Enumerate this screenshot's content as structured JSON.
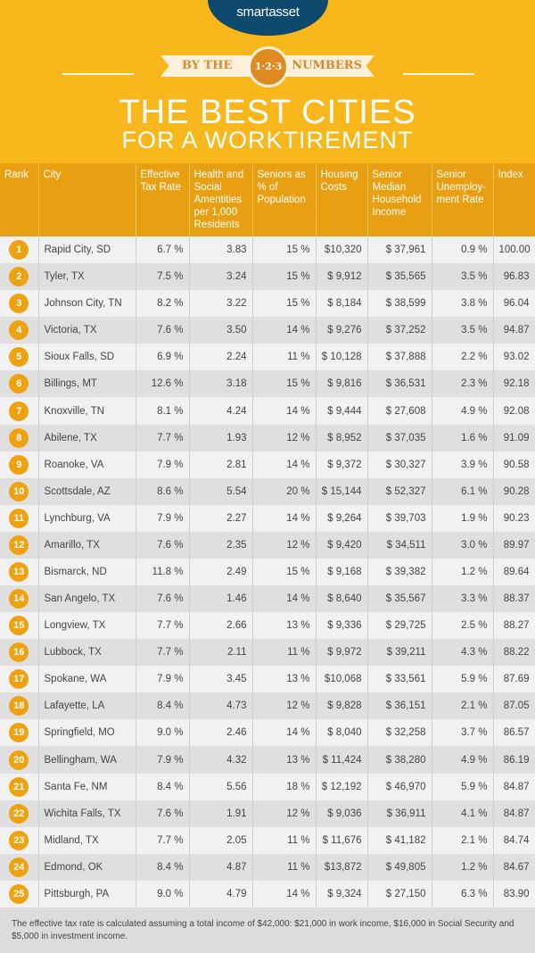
{
  "brand": "smartasset",
  "banner": {
    "left": "BY THE",
    "coin": "1·2·3",
    "right": "NUMBERS"
  },
  "title_line1": "THE BEST CITIES",
  "title_line2": "FOR A WORKTIREMENT",
  "accent_colors": {
    "background": "#f8b81c",
    "header": "#e8a012",
    "badge": "#eea20f",
    "logo": "#0d4a6d"
  },
  "columns": [
    "Rank",
    "City",
    "Effective Tax Rate",
    "Health and Social Amentities per 1,000 Residents",
    "Seniors as % of Population",
    "Housing Costs",
    "Senior Median Household Income",
    "Senior Unemploy-ment Rate",
    "Index"
  ],
  "rows": [
    [
      "1",
      "Rapid City, SD",
      "6.7 %",
      "3.83",
      "15 %",
      "$10,320",
      "$ 37,961",
      "0.9 %",
      "100.00"
    ],
    [
      "2",
      "Tyler, TX",
      "7.5 %",
      "3.24",
      "15 %",
      "$ 9,912",
      "$ 35,565",
      "3.5 %",
      "96.83"
    ],
    [
      "3",
      "Johnson City, TN",
      "8.2 %",
      "3.22",
      "15 %",
      "$ 8,184",
      "$ 38,599",
      "3.8 %",
      "96.04"
    ],
    [
      "4",
      "Victoria, TX",
      "7.6 %",
      "3.50",
      "14 %",
      "$ 9,276",
      "$ 37,252",
      "3.5 %",
      "94.87"
    ],
    [
      "5",
      "Sioux Falls, SD",
      "6.9 %",
      "2.24",
      "11 %",
      "$ 10,128",
      "$ 37,888",
      "2.2 %",
      "93.02"
    ],
    [
      "6",
      "Billings, MT",
      "12.6 %",
      "3.18",
      "15 %",
      "$ 9,816",
      "$ 36,531",
      "2.3 %",
      "92.18"
    ],
    [
      "7",
      "Knoxville, TN",
      "8.1 %",
      "4.24",
      "14 %",
      "$ 9,444",
      "$ 27,608",
      "4.9 %",
      "92.08"
    ],
    [
      "8",
      "Abilene, TX",
      "7.7 %",
      "1.93",
      "12 %",
      "$ 8,952",
      "$ 37,035",
      "1.6 %",
      "91.09"
    ],
    [
      "9",
      "Roanoke, VA",
      "7.9 %",
      "2.81",
      "14 %",
      "$ 9,372",
      "$ 30,327",
      "3.9 %",
      "90.58"
    ],
    [
      "10",
      "Scottsdale, AZ",
      "8.6 %",
      "5.54",
      "20 %",
      "$ 15,144",
      "$ 52,327",
      "6.1 %",
      "90.28"
    ],
    [
      "11",
      "Lynchburg, VA",
      "7.9 %",
      "2.27",
      "14 %",
      "$ 9,264",
      "$ 39,703",
      "1.9 %",
      "90.23"
    ],
    [
      "12",
      "Amarillo, TX",
      "7.6 %",
      "2.35",
      "12 %",
      "$ 9,420",
      "$ 34,511",
      "3.0 %",
      "89.97"
    ],
    [
      "13",
      "Bismarck, ND",
      "11.8 %",
      "2.49",
      "15 %",
      "$ 9,168",
      "$ 39,382",
      "1.2 %",
      "89.64"
    ],
    [
      "14",
      "San Angelo, TX",
      "7.6 %",
      "1.46",
      "14 %",
      "$ 8,640",
      "$ 35,567",
      "3.3 %",
      "88.37"
    ],
    [
      "15",
      "Longview, TX",
      "7.7 %",
      "2.66",
      "13 %",
      "$ 9,336",
      "$ 29,725",
      "2.5 %",
      "88.27"
    ],
    [
      "16",
      "Lubbock, TX",
      "7.7 %",
      "2.11",
      "11 %",
      "$ 9,972",
      "$ 39,211",
      "4.3 %",
      "88.22"
    ],
    [
      "17",
      "Spokane, WA",
      "7.9 %",
      "3.45",
      "13 %",
      "$10,068",
      "$ 33,561",
      "5.9 %",
      "87.69"
    ],
    [
      "18",
      "Lafayette, LA",
      "8.4 %",
      "4.73",
      "12 %",
      "$ 9,828",
      "$ 36,151",
      "2.1 %",
      "87.05"
    ],
    [
      "19",
      "Springfield, MO",
      "9.0 %",
      "2.46",
      "14 %",
      "$ 8,040",
      "$ 32,258",
      "3.7 %",
      "86.57"
    ],
    [
      "20",
      "Bellingham, WA",
      "7.9 %",
      "4.32",
      "13 %",
      "$ 11,424",
      "$ 38,280",
      "4.9 %",
      "86.19"
    ],
    [
      "21",
      "Santa Fe, NM",
      "8.4 %",
      "5.56",
      "18 %",
      "$ 12,192",
      "$ 46,970",
      "5.9 %",
      "84.87"
    ],
    [
      "22",
      "Wichita Falls, TX",
      "7.6 %",
      "1.91",
      "12 %",
      "$ 9,036",
      "$ 36,911",
      "4.1 %",
      "84.87"
    ],
    [
      "23",
      "Midland, TX",
      "7.7 %",
      "2.05",
      "11 %",
      "$ 11,676",
      "$ 41,182",
      "2.1 %",
      "84.74"
    ],
    [
      "24",
      "Edmond, OK",
      "8.4 %",
      "4.87",
      "11 %",
      "$13,872",
      "$ 49,805",
      "1.2 %",
      "84.67"
    ],
    [
      "25",
      "Pittsburgh, PA",
      "9.0 %",
      "4.79",
      "14 %",
      "$ 9,324",
      "$ 27,150",
      "6.3 %",
      "83.90"
    ]
  ],
  "footnote": "The effective tax rate is calculated assuming a total income of $42,000: $21,000 in work income, $16,000 in Social Security and $5,000 in investment income."
}
